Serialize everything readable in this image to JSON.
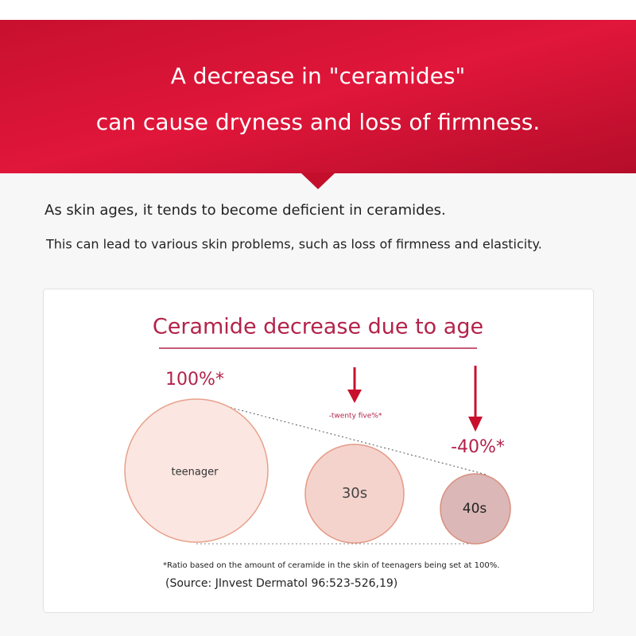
{
  "banner": {
    "line1": "A decrease in \"ceramides\"",
    "line2": "can cause dryness and loss of firmness."
  },
  "intro": {
    "line1": "As skin ages, it tends to become deficient in ceramides.",
    "line2": "This can lead to various skin problems, such as loss of firmness and elasticity."
  },
  "card": {
    "title": "Ceramide decrease due to age",
    "groups": [
      {
        "label": "teenager",
        "change": "100%*"
      },
      {
        "label": "30s",
        "change": "-twenty five%*"
      },
      {
        "label": "40s",
        "change": "-40%*"
      }
    ],
    "footnote": "*Ratio based on the amount of ceramide in the skin of teenagers being set at 100%.",
    "source": "(Source: JInvest Dermatol 96:523-526,19)"
  }
}
